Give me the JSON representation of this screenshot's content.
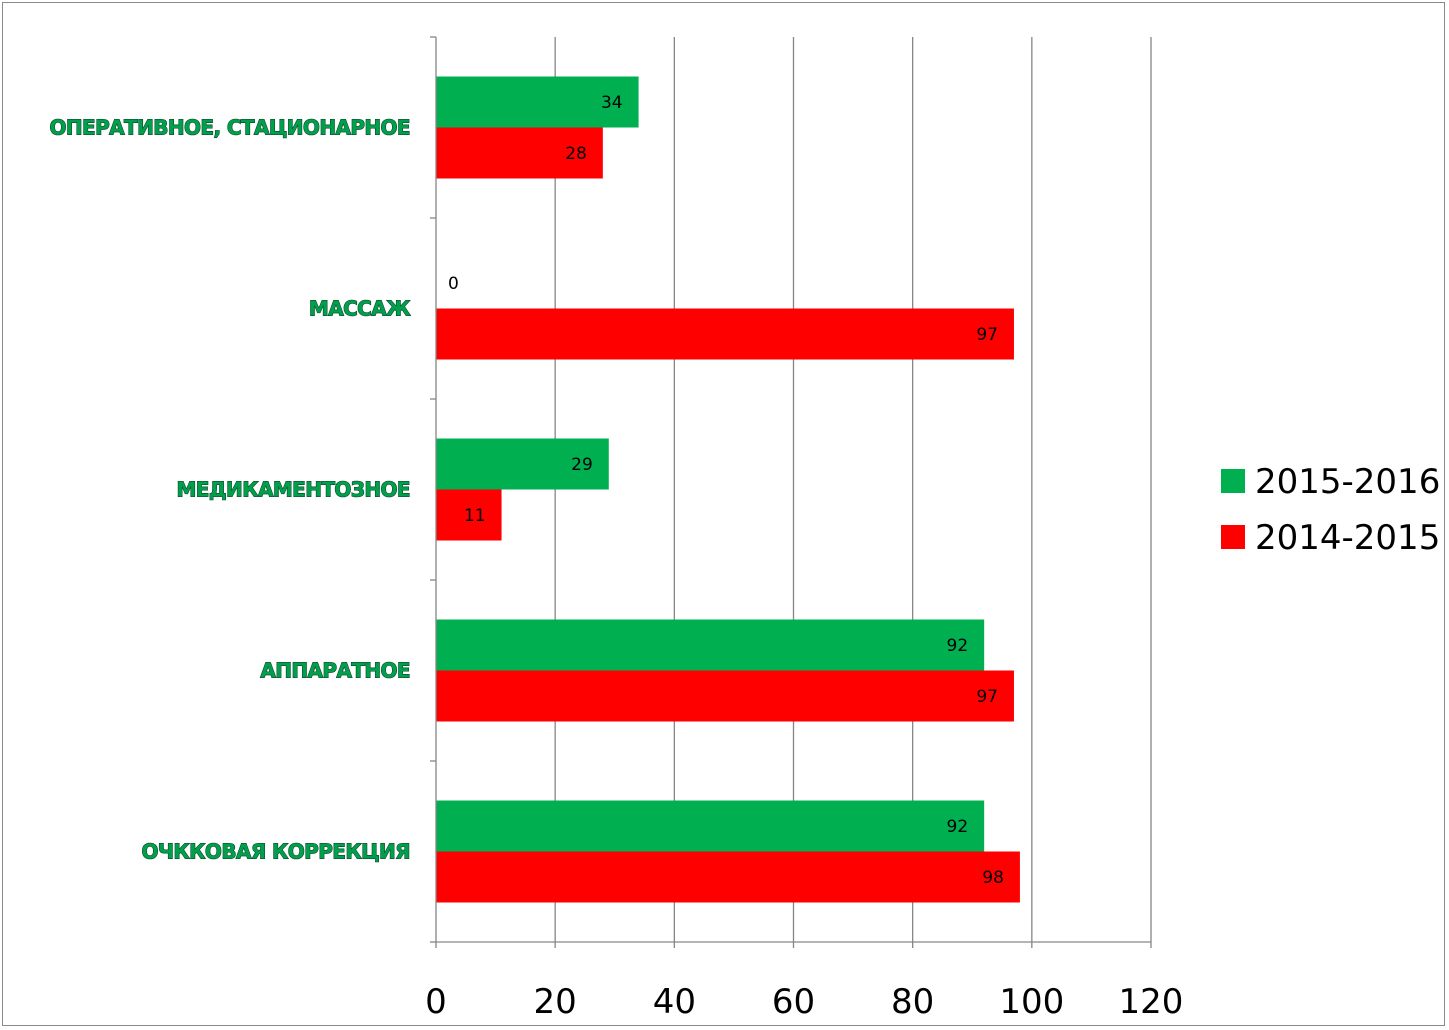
{
  "chart_data": {
    "type": "bar",
    "orientation": "horizontal",
    "title": "",
    "xlabel": "",
    "ylabel": "",
    "categories": [
      "ОПЕРАТИВНОЕ, СТАЦИОНАРНОЕ",
      "МАССАЖ",
      "МЕДИКАМЕНТОЗНОЕ",
      "АППАРАТНОЕ",
      "ОЧККОВАЯ КОРРЕКЦИЯ"
    ],
    "series": [
      {
        "name": "2015-2016",
        "color": "#00b050",
        "values": [
          34,
          0,
          29,
          92,
          92
        ]
      },
      {
        "name": "2014-2015",
        "color": "#ff0000",
        "values": [
          28,
          97,
          11,
          97,
          98
        ]
      }
    ],
    "xlim": [
      0,
      120
    ],
    "xticks": [
      0,
      20,
      40,
      60,
      80,
      100,
      120
    ],
    "grid": true,
    "legend_position": "right",
    "data_labels": true
  }
}
